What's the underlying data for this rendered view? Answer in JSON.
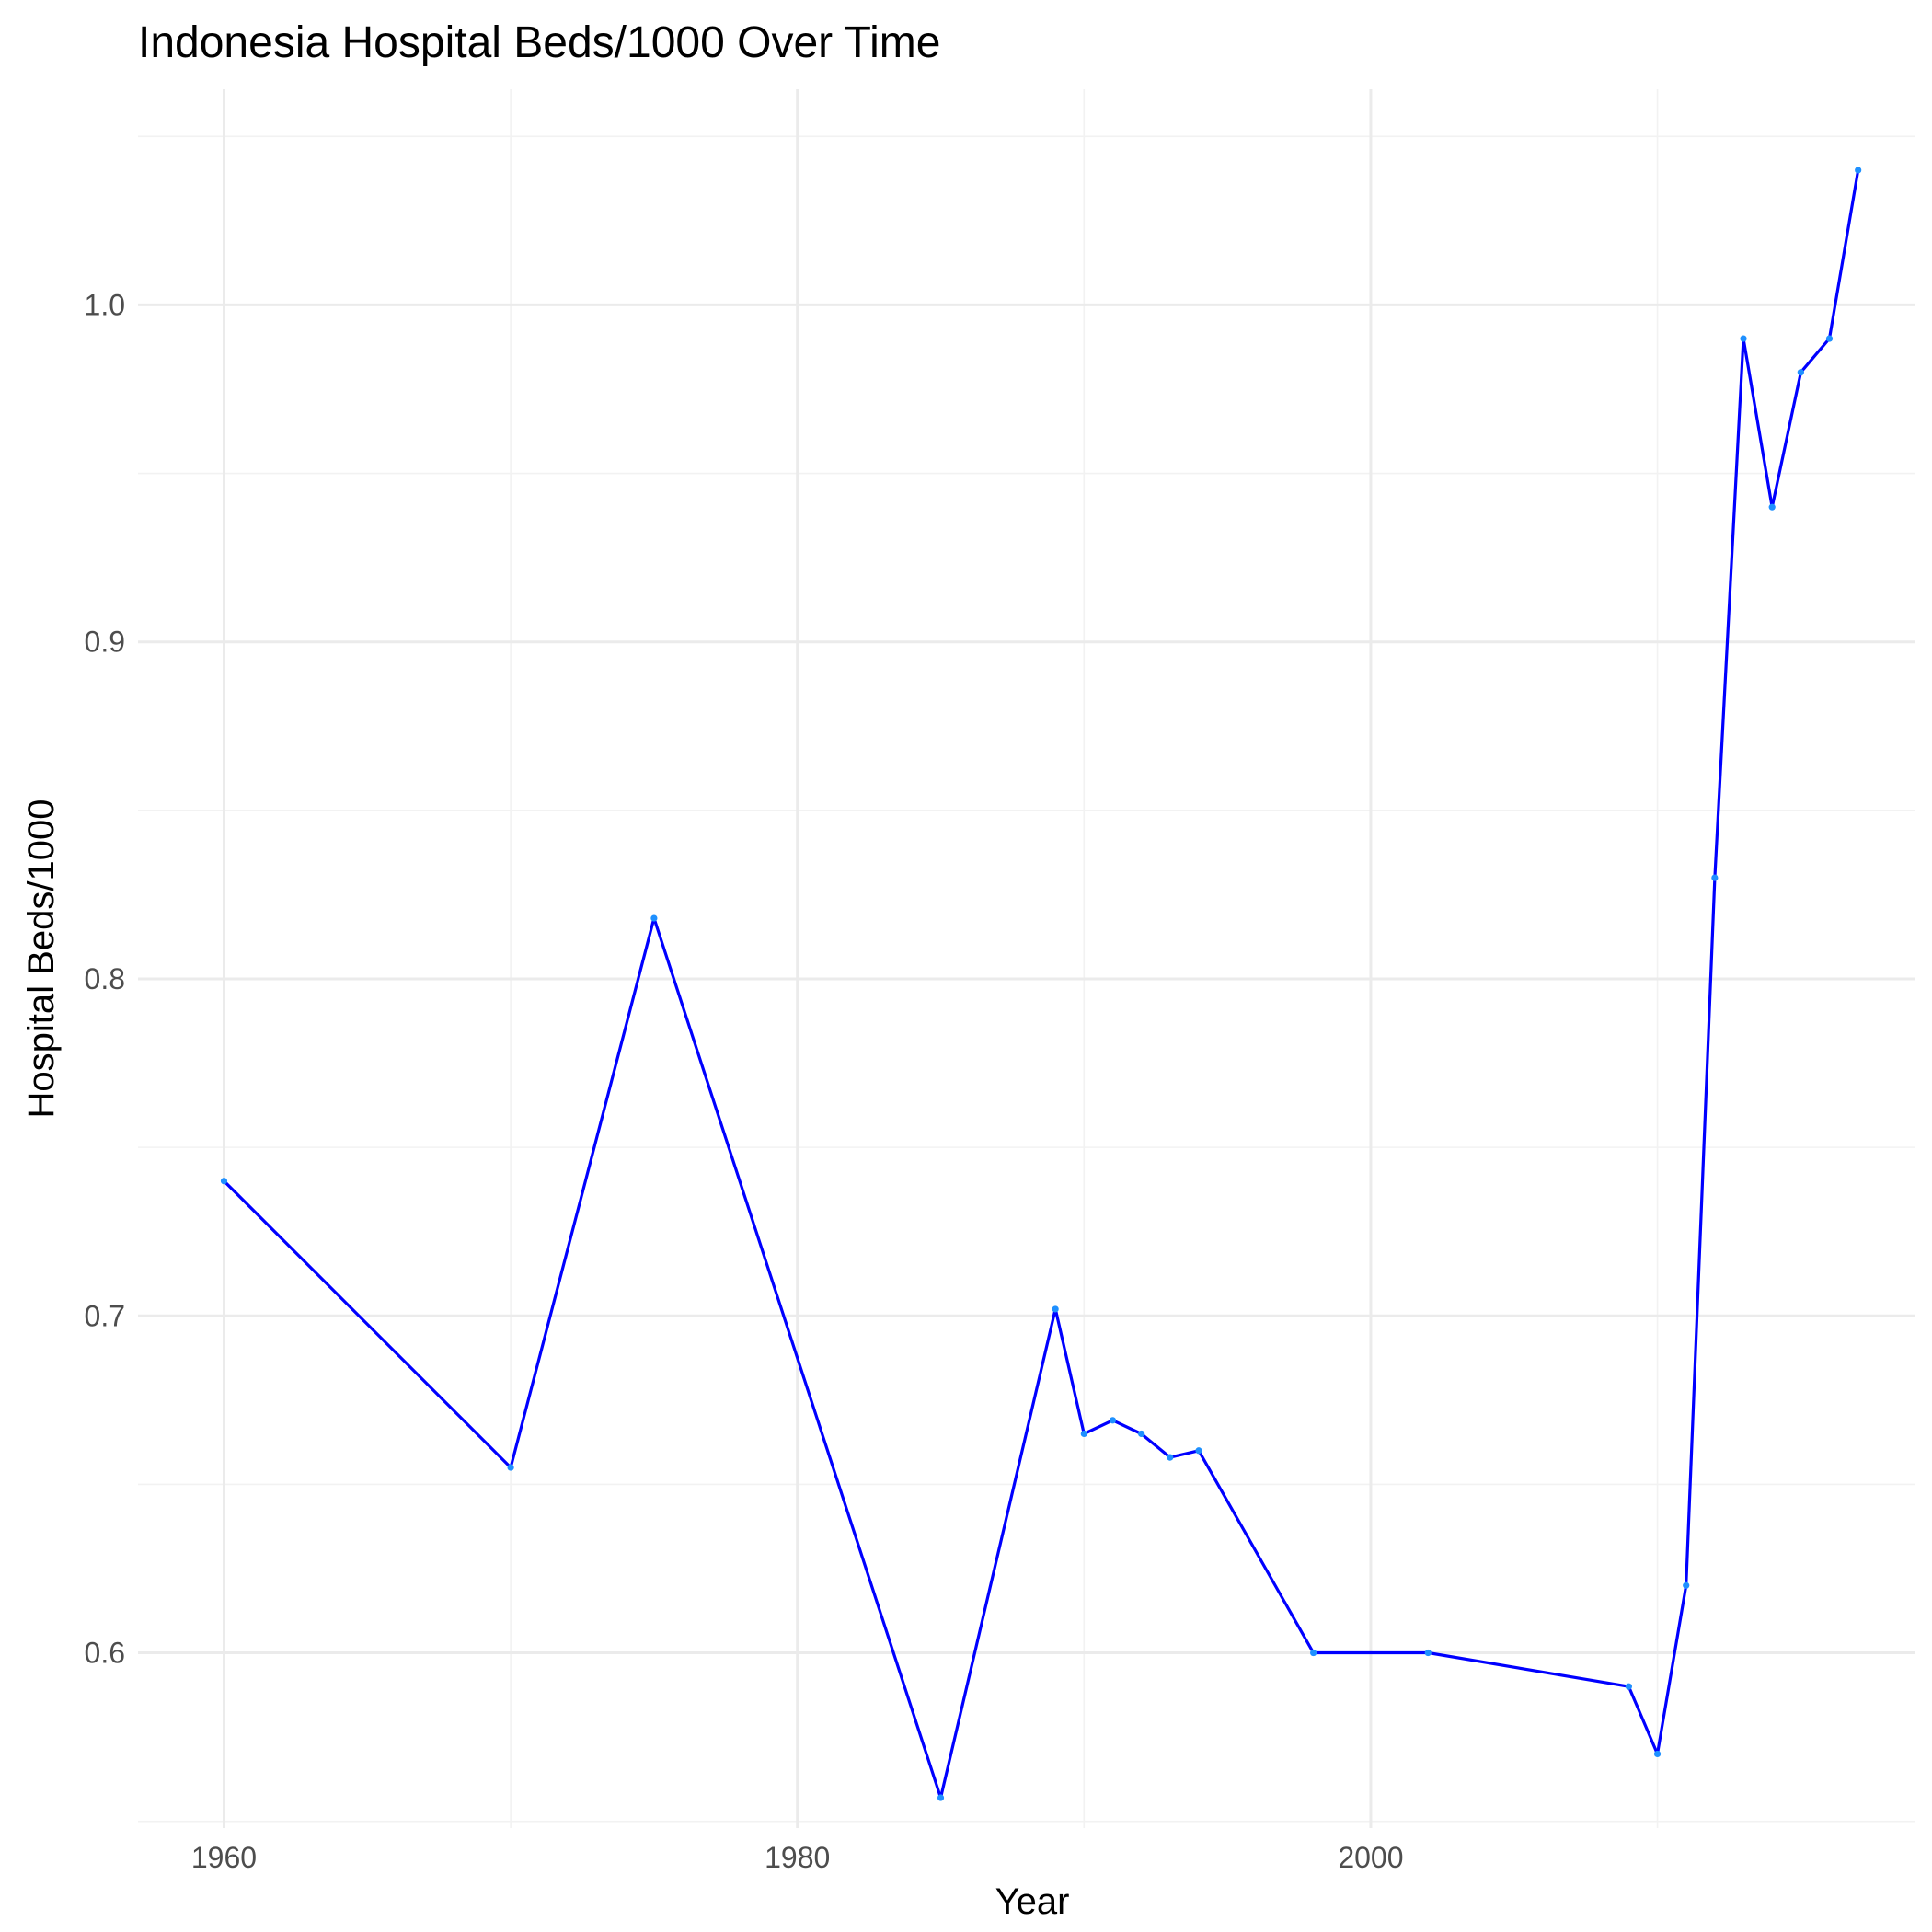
{
  "chart_data": {
    "type": "line",
    "title": "Indonesia Hospital Beds/1000 Over Time",
    "xlabel": "Year",
    "ylabel": "Hospital Beds/1000",
    "xlim": [
      1957,
      2019
    ],
    "ylim": [
      0.548,
      1.064
    ],
    "x_ticks": [
      1960,
      1980,
      2000
    ],
    "x_tick_labels": [
      "1960",
      "1980",
      "2000"
    ],
    "y_ticks": [
      0.6,
      0.7,
      0.8,
      0.9,
      1.0
    ],
    "y_tick_labels": [
      "0.6",
      "0.7",
      "0.8",
      "0.9",
      "1.0"
    ],
    "grid": true,
    "series": [
      {
        "color": "#0000ff",
        "point_color": "#1e90ff",
        "x": [
          1960,
          1970,
          1975,
          1985,
          1989,
          1990,
          1991,
          1992,
          1993,
          1994,
          1998,
          2002,
          2009,
          2010,
          2011,
          2012,
          2013,
          2014,
          2015,
          2016,
          2017
        ],
        "y": [
          0.74,
          0.655,
          0.818,
          0.557,
          0.702,
          0.665,
          0.669,
          0.665,
          0.658,
          0.66,
          0.6,
          0.6,
          0.59,
          0.57,
          0.62,
          0.83,
          0.99,
          0.94,
          0.98,
          0.99,
          1.04
        ]
      }
    ]
  }
}
